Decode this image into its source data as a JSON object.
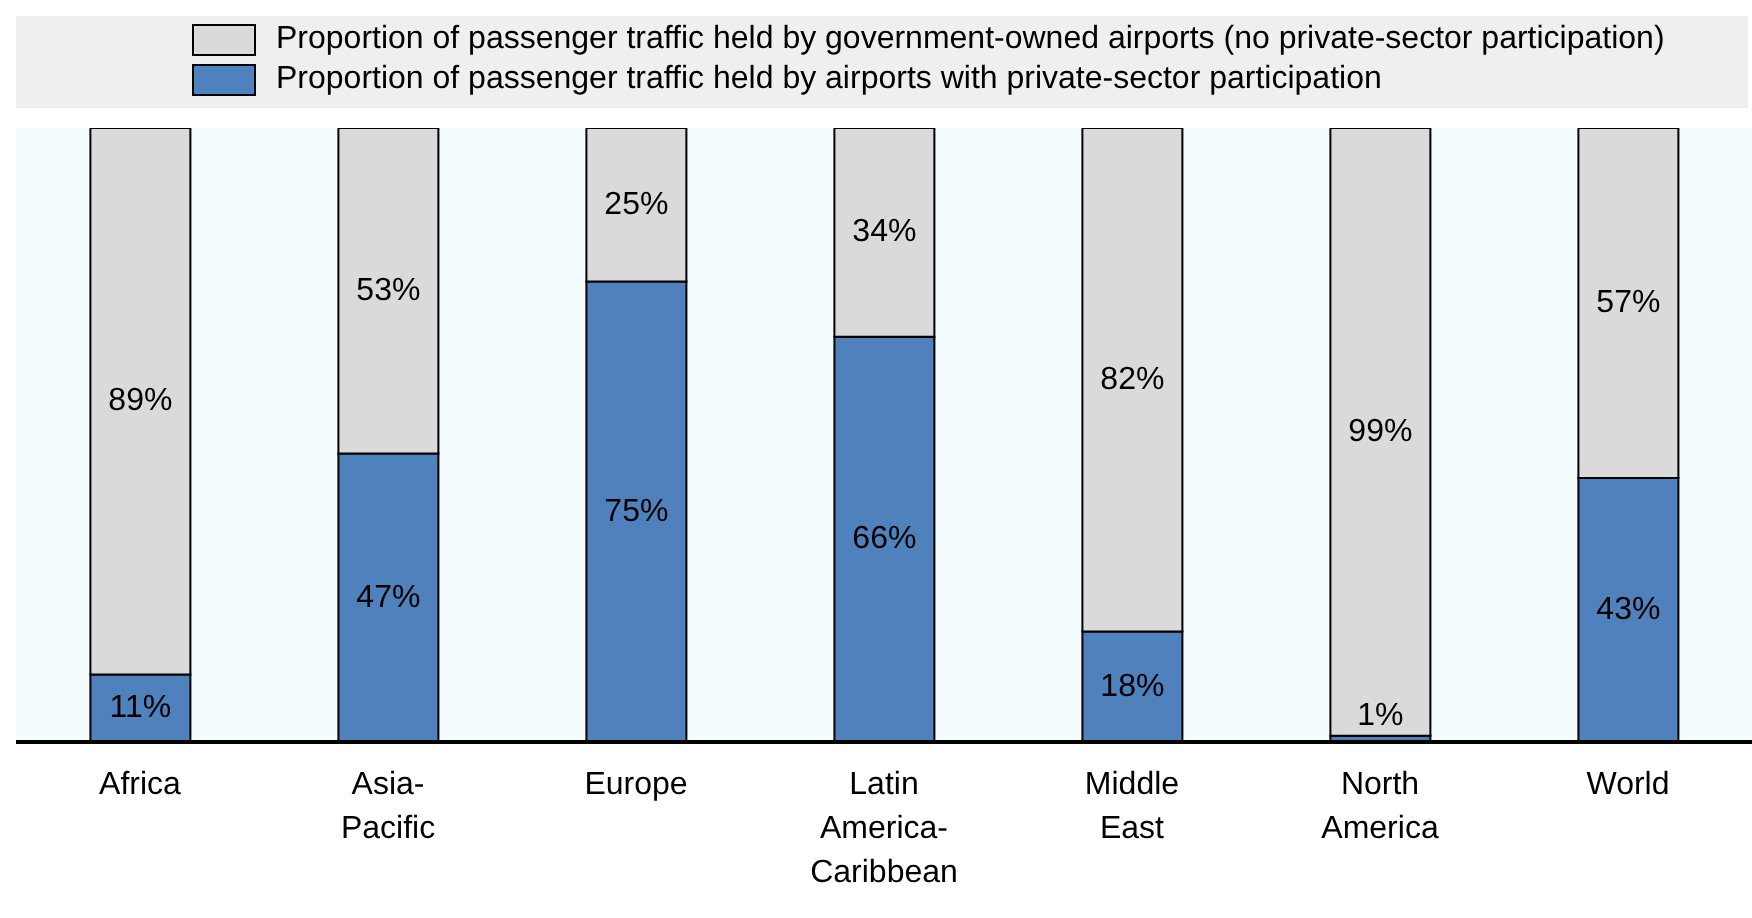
{
  "chart_data": {
    "type": "bar",
    "stacked": true,
    "legend": "top",
    "categories": [
      "Africa",
      "Asia-Pacific",
      "Europe",
      "Latin America-Caribbean",
      "Middle East",
      "North America",
      "World"
    ],
    "series": [
      {
        "name": "Proportion of passenger traffic held by airports with private-sector participation",
        "color": "#4f81bd",
        "values": [
          11,
          47,
          75,
          66,
          18,
          1,
          43
        ],
        "value_labels": [
          "11%",
          "47%",
          "75%",
          "66%",
          "18%",
          "1%",
          "43%"
        ]
      },
      {
        "name": "Proportion of passenger traffic held by government-owned airports (no private-sector participation)",
        "color": "#dadada",
        "values": [
          89,
          53,
          25,
          34,
          82,
          99,
          57
        ],
        "value_labels": [
          "89%",
          "53%",
          "25%",
          "34%",
          "82%",
          "99%",
          "57%"
        ]
      }
    ]
  }
}
